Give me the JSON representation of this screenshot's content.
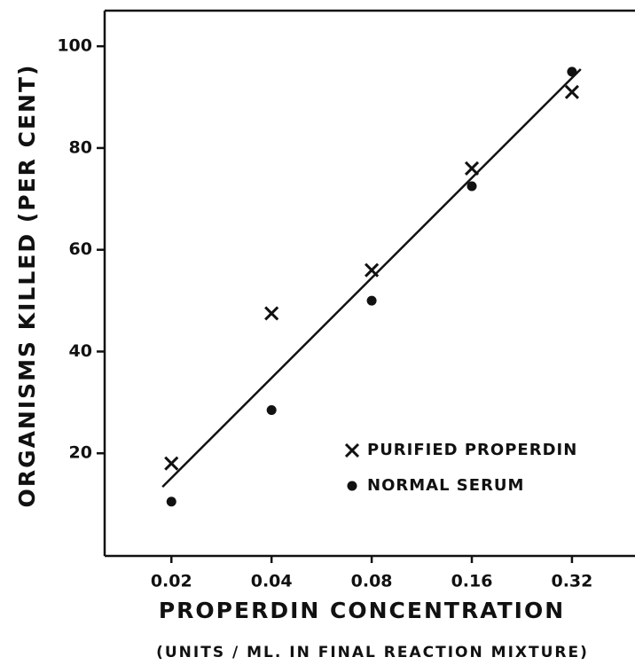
{
  "chart_data": {
    "type": "scatter",
    "xlabel": "PROPERDIN CONCENTRATION",
    "xlabel_note": "(UNITS / ML. IN FINAL REACTION MIXTURE)",
    "ylabel": "ORGANISMS KILLED (PER CENT)",
    "xscale": "log",
    "xlim": [
      0.0126,
      0.495
    ],
    "xticks": [
      0.02,
      0.04,
      0.08,
      0.16,
      0.32
    ],
    "ylim": [
      0,
      107
    ],
    "yticks": [
      20,
      40,
      60,
      80,
      100
    ],
    "legend": "lower right",
    "series": [
      {
        "name": "PURIFIED PROPERDIN",
        "marker": "x",
        "color": "#111111",
        "x": [
          0.02,
          0.04,
          0.08,
          0.16,
          0.32
        ],
        "values": [
          18,
          47.5,
          56,
          76,
          91
        ]
      },
      {
        "name": "NORMAL SERUM",
        "marker": "o",
        "color": "#111111",
        "x": [
          0.02,
          0.04,
          0.08,
          0.16,
          0.32
        ],
        "values": [
          10.5,
          28.5,
          50,
          72.5,
          95
        ]
      }
    ],
    "fit_line": {
      "x": [
        0.0188,
        0.34
      ],
      "values": [
        13.4,
        95.5
      ],
      "color": "#111111"
    }
  }
}
